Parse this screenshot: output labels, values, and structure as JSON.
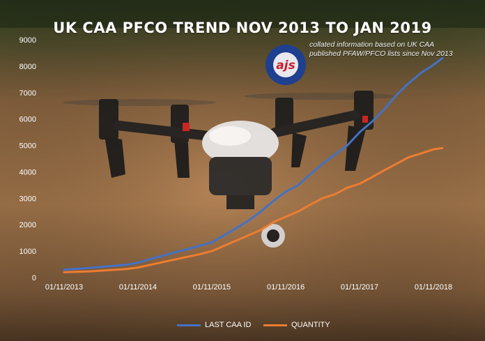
{
  "title": "UK CAA PFCO TREND NOV 2013 TO JAN 2019",
  "note": "collated information based on UK CAA published PFAW/PFCO lists since Nov 2013",
  "logo": {
    "text": "ajs",
    "colors": {
      "ring": "#1f3f8f",
      "inner": "#e8e8ee",
      "text": "#c8202e"
    }
  },
  "colors": {
    "last_caa_id": "#4472c4",
    "quantity": "#ed7d31",
    "axis_text": "#ffffff"
  },
  "chart_data": {
    "type": "line",
    "title": "UK CAA PFCO TREND NOV 2013 TO JAN 2019",
    "xlabel": "",
    "ylabel": "",
    "x_ticks": [
      "01/11/2013",
      "01/11/2014",
      "01/11/2015",
      "01/11/2016",
      "01/11/2017",
      "01/11/2018"
    ],
    "y_ticks": [
      0,
      1000,
      2000,
      3000,
      4000,
      5000,
      6000,
      7000,
      8000,
      9000
    ],
    "ylim": [
      0,
      9000
    ],
    "xlim": [
      "2013-11-01",
      "2019-01-01"
    ],
    "grid": false,
    "legend_position": "bottom",
    "series": [
      {
        "name": "LAST CAA ID",
        "color": "#4472c4",
        "points": [
          [
            "2013-11-01",
            300
          ],
          [
            "2014-01-01",
            330
          ],
          [
            "2014-03-01",
            360
          ],
          [
            "2014-05-01",
            400
          ],
          [
            "2014-07-01",
            440
          ],
          [
            "2014-09-01",
            480
          ],
          [
            "2014-11-01",
            560
          ],
          [
            "2015-01-01",
            700
          ],
          [
            "2015-03-01",
            820
          ],
          [
            "2015-05-01",
            950
          ],
          [
            "2015-07-01",
            1070
          ],
          [
            "2015-09-01",
            1200
          ],
          [
            "2015-11-01",
            1330
          ],
          [
            "2016-01-01",
            1600
          ],
          [
            "2016-03-01",
            1870
          ],
          [
            "2016-05-01",
            2150
          ],
          [
            "2016-07-01",
            2500
          ],
          [
            "2016-09-01",
            2900
          ],
          [
            "2016-11-01",
            3250
          ],
          [
            "2017-01-01",
            3500
          ],
          [
            "2017-03-01",
            3900
          ],
          [
            "2017-05-01",
            4300
          ],
          [
            "2017-07-01",
            4650
          ],
          [
            "2017-09-01",
            5000
          ],
          [
            "2017-11-01",
            5500
          ],
          [
            "2018-01-01",
            5900
          ],
          [
            "2018-03-01",
            6350
          ],
          [
            "2018-05-01",
            6900
          ],
          [
            "2018-07-01",
            7350
          ],
          [
            "2018-09-01",
            7750
          ],
          [
            "2018-11-01",
            8050
          ],
          [
            "2018-12-15",
            8300
          ]
        ]
      },
      {
        "name": "QUANTITY",
        "color": "#ed7d31",
        "points": [
          [
            "2013-11-01",
            200
          ],
          [
            "2014-01-01",
            220
          ],
          [
            "2014-03-01",
            230
          ],
          [
            "2014-05-01",
            260
          ],
          [
            "2014-07-01",
            290
          ],
          [
            "2014-09-01",
            320
          ],
          [
            "2014-11-01",
            380
          ],
          [
            "2015-01-01",
            480
          ],
          [
            "2015-03-01",
            580
          ],
          [
            "2015-05-01",
            680
          ],
          [
            "2015-07-01",
            780
          ],
          [
            "2015-09-01",
            880
          ],
          [
            "2015-11-01",
            1000
          ],
          [
            "2016-01-01",
            1200
          ],
          [
            "2016-03-01",
            1400
          ],
          [
            "2016-05-01",
            1600
          ],
          [
            "2016-07-01",
            1800
          ],
          [
            "2016-09-01",
            2100
          ],
          [
            "2016-11-01",
            2300
          ],
          [
            "2017-01-01",
            2500
          ],
          [
            "2017-03-01",
            2750
          ],
          [
            "2017-05-01",
            3000
          ],
          [
            "2017-07-01",
            3150
          ],
          [
            "2017-09-01",
            3400
          ],
          [
            "2017-11-01",
            3550
          ],
          [
            "2018-01-01",
            3800
          ],
          [
            "2018-03-01",
            4050
          ],
          [
            "2018-05-01",
            4300
          ],
          [
            "2018-07-01",
            4550
          ],
          [
            "2018-09-01",
            4700
          ],
          [
            "2018-11-01",
            4850
          ],
          [
            "2018-12-15",
            4900
          ]
        ]
      }
    ]
  }
}
